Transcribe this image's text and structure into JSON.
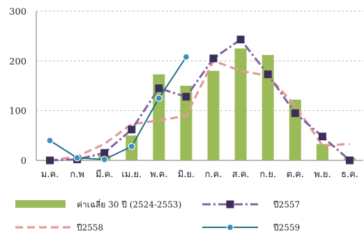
{
  "chart_data": {
    "type": "bar",
    "categories": [
      "ม.ค.",
      "ก.พ",
      "มี.ค.",
      "เม.ย.",
      "พ.ค.",
      "มิ.ย.",
      "ก.ค.",
      "ส.ค.",
      "ก.ย.",
      "ต.ค.",
      "พ.ย.",
      "ธ.ค."
    ],
    "ylim": [
      0,
      300
    ],
    "yticks": [
      0,
      100,
      200,
      300
    ],
    "grid": true,
    "legend_position": "bottom",
    "series": [
      {
        "name": "ค่าเฉลี่ย 30 ปี (2524-2553)",
        "kind": "bar",
        "color": "#9bbb59",
        "values": [
          0,
          2,
          10,
          50,
          173,
          150,
          180,
          225,
          212,
          122,
          33,
          5
        ]
      },
      {
        "name": "ปี2557",
        "kind": "line-dashdot-square",
        "color": "#8064a2",
        "marker_color": "#3b2e5a",
        "values": [
          0,
          2,
          15,
          62,
          145,
          128,
          205,
          243,
          173,
          95,
          48,
          0
        ]
      },
      {
        "name": "ปี2558",
        "kind": "line-dashed",
        "color": "#e6999a",
        "values": [
          0,
          8,
          33,
          73,
          80,
          90,
          200,
          180,
          170,
          110,
          30,
          33
        ]
      },
      {
        "name": "ปี2559",
        "kind": "line-circle",
        "color": "#1f6f8b",
        "marker_color": "#3a8ec0",
        "values": [
          40,
          5,
          2,
          28,
          125,
          208,
          null,
          null,
          null,
          null,
          null,
          null
        ]
      }
    ]
  }
}
